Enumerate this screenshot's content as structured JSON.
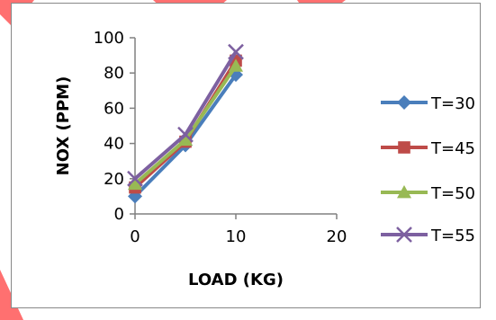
{
  "chart_data": {
    "type": "line",
    "title": "",
    "xlabel": "LOAD (KG)",
    "ylabel": "NOX (PPM)",
    "x": [
      0,
      5,
      10
    ],
    "xlim": [
      0,
      20
    ],
    "ylim": [
      0,
      100
    ],
    "x_ticks": [
      "0",
      "10",
      "20"
    ],
    "x_tick_values": [
      0,
      10,
      20
    ],
    "y_ticks": [
      "0",
      "20",
      "40",
      "60",
      "80",
      "100"
    ],
    "y_tick_values": [
      0,
      20,
      40,
      60,
      80,
      100
    ],
    "grid": false,
    "legend_position": "right",
    "series": [
      {
        "name": "T=30",
        "values": [
          10,
          39,
          79
        ],
        "color": "#4a7ebb",
        "marker": "diamond"
      },
      {
        "name": "T=45",
        "values": [
          15,
          41,
          87
        ],
        "color": "#be4b48",
        "marker": "square"
      },
      {
        "name": "T=50",
        "values": [
          17,
          42,
          84
        ],
        "color": "#98b954",
        "marker": "triangle"
      },
      {
        "name": "T=55",
        "values": [
          20,
          45,
          92
        ],
        "color": "#7d60a0",
        "marker": "x"
      }
    ]
  },
  "colors": {
    "background_accent": "#ff6f6f",
    "axis": "#808080"
  }
}
